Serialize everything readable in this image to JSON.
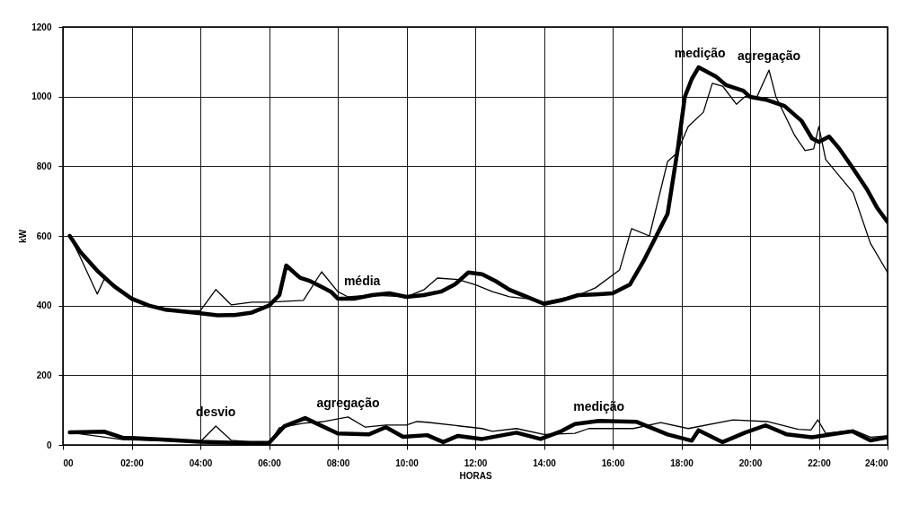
{
  "chart_data": {
    "type": "line",
    "xlabel": "HORAS",
    "ylabel": "kW",
    "xlim": [
      0,
      24
    ],
    "ylim": [
      0,
      1200
    ],
    "xticks": [
      {
        "value": 0,
        "label": "00"
      },
      {
        "value": 2,
        "label": "02:00"
      },
      {
        "value": 4,
        "label": "04:00"
      },
      {
        "value": 6,
        "label": "06:00"
      },
      {
        "value": 8,
        "label": "08:00"
      },
      {
        "value": 10,
        "label": "10:00"
      },
      {
        "value": 12,
        "label": "12:00"
      },
      {
        "value": 14,
        "label": "14:00"
      },
      {
        "value": 16,
        "label": "16:00"
      },
      {
        "value": 18,
        "label": "18:00"
      },
      {
        "value": 20,
        "label": "20:00"
      },
      {
        "value": 22,
        "label": "22:00"
      },
      {
        "value": 24,
        "label": "24:00"
      }
    ],
    "yticks": [
      0,
      200,
      400,
      600,
      800,
      1000,
      1200
    ],
    "grid": true,
    "marker": "none",
    "line_style": "solid",
    "series": [
      {
        "color": "#000000",
        "x": [
          0.2,
          0.5,
          1,
          1.5,
          2,
          2.5,
          3,
          3.5,
          4,
          4.5,
          5,
          5.5,
          6,
          6.3,
          6.5,
          6.9,
          7.2,
          7.5,
          7.8,
          8,
          8.5,
          9,
          9.5,
          10,
          10.5,
          11,
          11.4,
          11.8,
          12.2,
          12.6,
          13,
          13.5,
          14,
          14.5,
          15,
          15.5,
          16,
          16.5,
          16.9,
          17.6,
          17.9,
          18.1,
          18.3,
          18.5,
          19,
          19.3,
          19.8,
          20,
          20.5,
          21,
          21.5,
          21.8,
          22,
          22.3,
          22.6,
          23,
          23.4,
          23.7,
          24
        ],
        "values": [
          600,
          555,
          500,
          455,
          420,
          400,
          388,
          383,
          378,
          372,
          373,
          380,
          400,
          430,
          515,
          480,
          470,
          455,
          440,
          420,
          420,
          430,
          435,
          425,
          430,
          440,
          460,
          495,
          490,
          470,
          445,
          425,
          405,
          415,
          430,
          432,
          435,
          460,
          528,
          664,
          853,
          999,
          1050,
          1084,
          1058,
          1033,
          1017,
          999,
          990,
          973,
          930,
          880,
          870,
          885,
          850,
          793,
          734,
          680,
          640
        ]
      },
      {
        "color": "#000000",
        "x": [
          0.2,
          0.5,
          1,
          1.2,
          1.5,
          2,
          3,
          4,
          4.45,
          4.9,
          5.5,
          6,
          7,
          7.53,
          8,
          8.3,
          9,
          10,
          10.5,
          10.9,
          11.5,
          12,
          12.5,
          13,
          13.5,
          14,
          14.5,
          15,
          15.5,
          16.2,
          16.55,
          17.07,
          17.6,
          17.86,
          18.2,
          18.64,
          18.9,
          19.2,
          19.6,
          19.85,
          20.2,
          20.55,
          20.75,
          21.3,
          21.6,
          21.85,
          22,
          22.2,
          23,
          23.5,
          24
        ],
        "values": [
          600,
          540,
          433,
          475,
          460,
          415,
          385,
          385,
          446,
          402,
          410,
          410,
          415,
          497,
          440,
          425,
          430,
          425,
          445,
          479,
          475,
          460,
          440,
          425,
          420,
          410,
          420,
          430,
          451,
          502,
          621,
          600,
          814,
          837,
          914,
          955,
          1038,
          1030,
          978,
          1000,
          1000,
          1076,
          1000,
          888,
          845,
          850,
          914,
          819,
          724,
          579,
          495
        ]
      },
      {
        "color": "#000000",
        "x": [
          0.2,
          1.2,
          1.75,
          2,
          3,
          4,
          5,
          6,
          6.45,
          7.05,
          8,
          8.9,
          9.4,
          9.9,
          10.6,
          11.07,
          11.5,
          12.2,
          13.2,
          13.9,
          14.5,
          14.9,
          15.6,
          16.7,
          17.6,
          18.3,
          18.5,
          19.2,
          19.85,
          20.45,
          21.07,
          21.8,
          22.97,
          23.5,
          24
        ],
        "values": [
          36,
          38,
          20,
          20,
          15,
          9,
          6,
          6,
          54,
          77,
          33,
          30,
          51,
          23,
          28,
          8,
          26,
          17,
          35,
          17,
          39,
          60,
          69,
          66,
          30,
          12,
          42,
          8,
          35,
          56,
          30,
          22,
          39,
          13,
          22
        ]
      },
      {
        "color": "#000000",
        "x": [
          0.2,
          1.75,
          4,
          4.45,
          4.9,
          6,
          6.3,
          7,
          7.6,
          8.3,
          8.8,
          9.4,
          10,
          10.3,
          10.6,
          12.2,
          12.5,
          13.2,
          14,
          14.9,
          15.3,
          16.6,
          17.4,
          18.2,
          19.5,
          20.5,
          21.4,
          21.77,
          21.97,
          22.2,
          23,
          23.5,
          24
        ],
        "values": [
          36,
          15,
          9,
          54,
          13,
          4,
          49,
          62,
          67,
          80,
          51,
          57,
          57,
          67,
          65,
          47,
          39,
          47,
          30,
          33,
          47,
          47,
          64,
          47,
          72,
          67,
          45,
          43,
          72,
          33,
          43,
          22,
          26
        ]
      }
    ],
    "annotations": [
      {
        "text": "medição",
        "x": 18.54,
        "y": 1084
      },
      {
        "text": "agregação",
        "x": 20.55,
        "y": 1076
      },
      {
        "text": "média",
        "x": 8.71,
        "y": 430
      },
      {
        "text": "desvio",
        "x": 4.45,
        "y": 54
      },
      {
        "text": "agregação",
        "x": 8.3,
        "y": 80
      },
      {
        "text": "medição",
        "x": 15.6,
        "y": 69
      }
    ]
  }
}
